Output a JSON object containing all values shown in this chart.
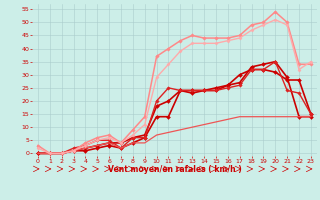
{
  "background_color": "#cceee8",
  "grid_color": "#aacccc",
  "xlabel": "Vent moyen/en rafales ( km/h )",
  "xlabel_color": "#cc0000",
  "xlim": [
    -0.5,
    23.5
  ],
  "ylim": [
    -1,
    57
  ],
  "xticks": [
    0,
    1,
    2,
    3,
    4,
    5,
    6,
    7,
    8,
    9,
    10,
    11,
    12,
    13,
    14,
    15,
    16,
    17,
    18,
    19,
    20,
    21,
    22,
    23
  ],
  "yticks": [
    0,
    5,
    10,
    15,
    20,
    25,
    30,
    35,
    40,
    45,
    50,
    55
  ],
  "tick_color": "#cc0000",
  "lines": [
    {
      "x": [
        0,
        1,
        2,
        3,
        4,
        5,
        6,
        7,
        8,
        9,
        10,
        11,
        12,
        13,
        14,
        15,
        16,
        17,
        18,
        19,
        20,
        21,
        22,
        23
      ],
      "y": [
        0,
        0,
        0,
        1,
        1,
        2,
        3,
        2,
        4,
        6,
        14,
        14,
        24,
        24,
        24,
        24,
        26,
        27,
        33,
        34,
        35,
        29,
        14,
        14
      ],
      "color": "#cc0000",
      "linewidth": 1.2,
      "marker": "D",
      "markersize": 2.0
    },
    {
      "x": [
        0,
        1,
        2,
        3,
        4,
        5,
        6,
        7,
        8,
        9,
        10,
        11,
        12,
        13,
        14,
        15,
        16,
        17,
        18,
        19,
        20,
        21,
        22,
        23
      ],
      "y": [
        0,
        0,
        0,
        1,
        2,
        3,
        4,
        4,
        6,
        7,
        18,
        20,
        24,
        23,
        24,
        25,
        26,
        30,
        32,
        32,
        31,
        28,
        28,
        15
      ],
      "color": "#cc0000",
      "linewidth": 1.2,
      "marker": "D",
      "markersize": 2.0
    },
    {
      "x": [
        0,
        1,
        2,
        3,
        4,
        5,
        6,
        7,
        8,
        9,
        10,
        11,
        12,
        13,
        14,
        15,
        16,
        17,
        18,
        19,
        20,
        21,
        22,
        23
      ],
      "y": [
        0,
        0,
        0,
        2,
        3,
        5,
        5,
        2,
        6,
        6,
        20,
        25,
        24,
        24,
        24,
        24,
        25,
        26,
        32,
        32,
        35,
        24,
        23,
        15
      ],
      "color": "#dd2222",
      "linewidth": 1.0,
      "marker": "D",
      "markersize": 1.8
    },
    {
      "x": [
        0,
        1,
        2,
        3,
        4,
        5,
        6,
        7,
        8,
        9,
        10,
        11,
        12,
        13,
        14,
        15,
        16,
        17,
        18,
        19,
        20,
        21,
        22,
        23
      ],
      "y": [
        0,
        0,
        0,
        1,
        2,
        3,
        4,
        2,
        4,
        4,
        7,
        8,
        9,
        10,
        11,
        12,
        13,
        14,
        14,
        14,
        14,
        14,
        14,
        14
      ],
      "color": "#ee5555",
      "linewidth": 0.9,
      "marker": null,
      "markersize": 0
    },
    {
      "x": [
        0,
        1,
        2,
        3,
        4,
        5,
        6,
        7,
        8,
        9,
        10,
        11,
        12,
        13,
        14,
        15,
        16,
        17,
        18,
        19,
        20,
        21,
        22,
        23
      ],
      "y": [
        3,
        0,
        0,
        1,
        4,
        6,
        7,
        4,
        9,
        14,
        37,
        40,
        43,
        45,
        44,
        44,
        44,
        45,
        49,
        50,
        54,
        50,
        34,
        34
      ],
      "color": "#ff8888",
      "linewidth": 1.1,
      "marker": "D",
      "markersize": 1.8
    },
    {
      "x": [
        0,
        1,
        2,
        3,
        4,
        5,
        6,
        7,
        8,
        9,
        10,
        11,
        12,
        13,
        14,
        15,
        16,
        17,
        18,
        19,
        20,
        21,
        22,
        23
      ],
      "y": [
        2,
        0,
        0,
        1,
        3,
        5,
        6,
        4,
        7,
        11,
        29,
        34,
        39,
        42,
        42,
        42,
        43,
        44,
        47,
        49,
        51,
        49,
        32,
        35
      ],
      "color": "#ffaaaa",
      "linewidth": 1.0,
      "marker": "D",
      "markersize": 1.6
    }
  ],
  "figsize": [
    3.2,
    2.0
  ],
  "dpi": 100
}
